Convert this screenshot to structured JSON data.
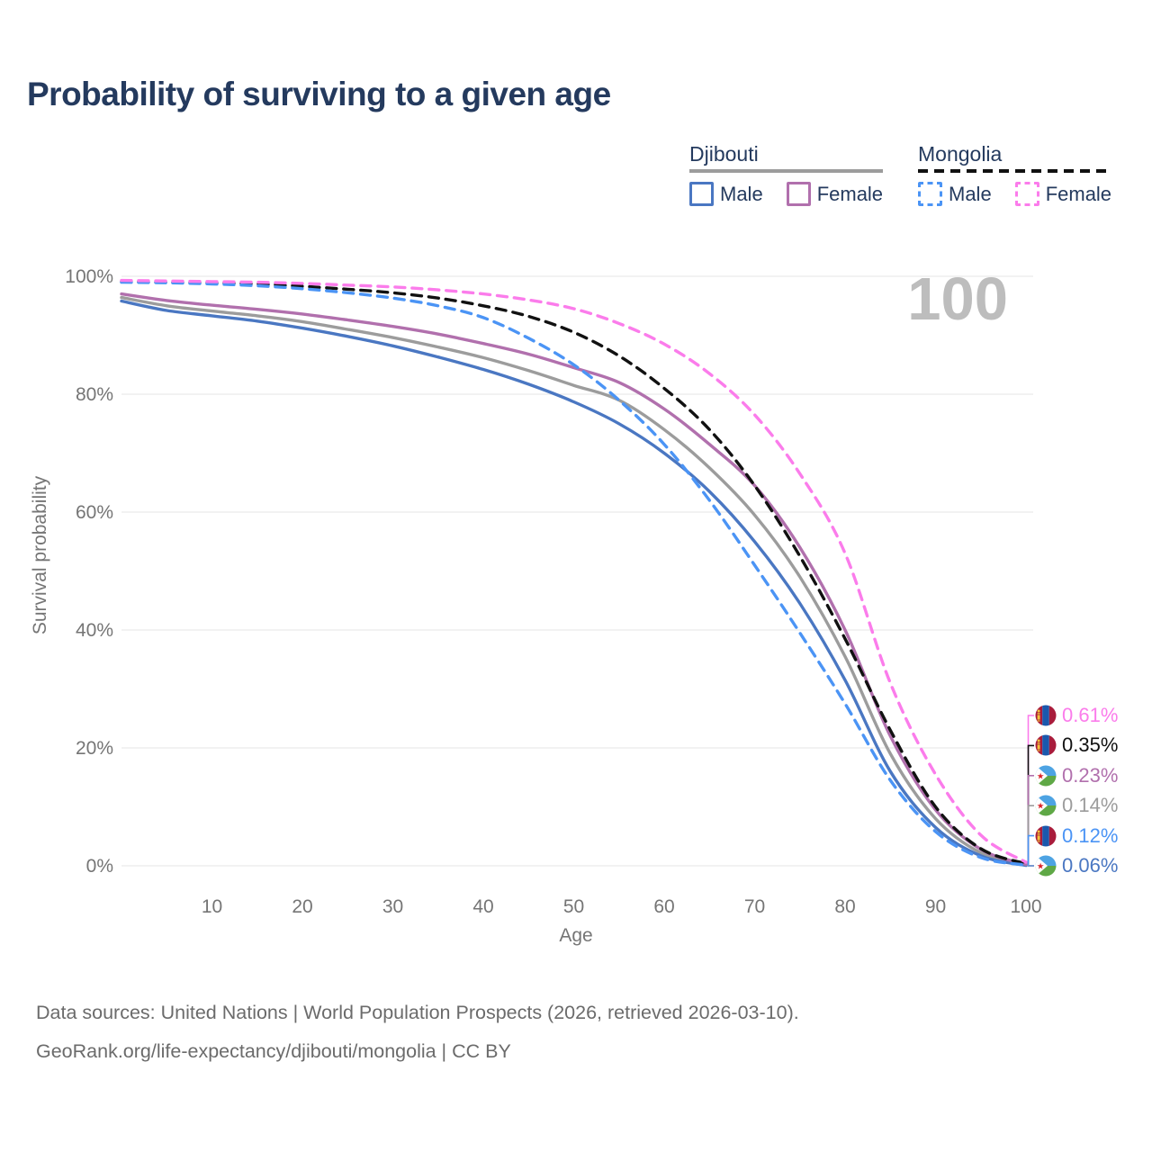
{
  "header": {
    "title": "Probability of surviving to a given age"
  },
  "legend": {
    "groups": [
      {
        "country": "Djibouti",
        "line_style": "solid",
        "underline_color": "#9c9c9c",
        "items": [
          {
            "label": "Male",
            "color": "#4a77c2",
            "dashed": false
          },
          {
            "label": "Female",
            "color": "#b170ad",
            "dashed": false
          }
        ]
      },
      {
        "country": "Mongolia",
        "line_style": "dashed",
        "underline_color": "#111111",
        "items": [
          {
            "label": "Male",
            "color": "#4b94f5",
            "dashed": true
          },
          {
            "label": "Female",
            "color": "#fb7ceb",
            "dashed": true
          }
        ]
      }
    ]
  },
  "watermark": "100",
  "chart_data": {
    "type": "line",
    "title": "Probability of surviving to a given age",
    "xlabel": "Age",
    "ylabel": "Survival probability",
    "xlim": [
      0,
      100
    ],
    "ylim": [
      0,
      100
    ],
    "grid": "horizontal",
    "x_ticks": [
      10,
      20,
      30,
      40,
      50,
      60,
      70,
      80,
      90,
      100
    ],
    "y_ticks": [
      0,
      20,
      40,
      60,
      80,
      100
    ],
    "y_tick_suffix": "%",
    "x": [
      0,
      5,
      10,
      15,
      20,
      25,
      30,
      35,
      40,
      45,
      50,
      55,
      60,
      65,
      70,
      75,
      80,
      85,
      90,
      95,
      100
    ],
    "series": [
      {
        "name": "Djibouti",
        "color": "#9c9c9c",
        "dashed": false,
        "end_label": "0.14%",
        "values": [
          96.4,
          95.0,
          94.1,
          93.3,
          92.3,
          91.0,
          89.6,
          88.0,
          86.2,
          84.0,
          81.5,
          79.0,
          74.0,
          67.5,
          59.5,
          49.0,
          35.5,
          19.0,
          8.0,
          2.2,
          0.14
        ]
      },
      {
        "name": "Djibouti Male",
        "color": "#4a77c2",
        "dashed": false,
        "end_label": "0.06%",
        "values": [
          95.8,
          94.2,
          93.3,
          92.4,
          91.2,
          89.8,
          88.2,
          86.3,
          84.2,
          81.7,
          78.7,
          75.0,
          70.0,
          63.5,
          55.0,
          44.5,
          31.5,
          16.0,
          6.5,
          1.7,
          0.06
        ]
      },
      {
        "name": "Djibouti Female",
        "color": "#b170ad",
        "dashed": false,
        "end_label": "0.23%",
        "values": [
          97.0,
          95.9,
          95.1,
          94.4,
          93.6,
          92.6,
          91.5,
          90.2,
          88.6,
          86.8,
          84.5,
          82.0,
          77.5,
          71.5,
          64.5,
          54.0,
          40.0,
          22.0,
          9.5,
          2.8,
          0.23
        ]
      },
      {
        "name": "Mongolia",
        "color": "#111111",
        "dashed": true,
        "end_label": "0.35%",
        "values": [
          99.1,
          99.0,
          98.9,
          98.7,
          98.3,
          97.8,
          97.2,
          96.3,
          95.0,
          93.2,
          90.5,
          86.5,
          81.0,
          74.0,
          64.5,
          52.5,
          38.5,
          23.0,
          10.0,
          2.9,
          0.35
        ]
      },
      {
        "name": "Mongolia Male",
        "color": "#4b94f5",
        "dashed": true,
        "end_label": "0.12%",
        "values": [
          99.0,
          98.9,
          98.7,
          98.4,
          97.9,
          97.2,
          96.3,
          95.0,
          93.0,
          89.5,
          85.0,
          79.0,
          71.5,
          62.0,
          51.0,
          39.5,
          27.5,
          14.5,
          5.8,
          1.4,
          0.12
        ]
      },
      {
        "name": "Mongolia Female",
        "color": "#fb7ceb",
        "dashed": true,
        "end_label": "0.61%",
        "values": [
          99.3,
          99.2,
          99.1,
          99.0,
          98.8,
          98.5,
          98.2,
          97.7,
          97.0,
          96.0,
          94.5,
          92.0,
          88.5,
          83.5,
          76.5,
          66.5,
          53.0,
          31.0,
          15.5,
          5.2,
          0.61
        ]
      }
    ],
    "end_labels": [
      {
        "value": "0.61%",
        "flag": "mongolia",
        "color": "#fb7ceb"
      },
      {
        "value": "0.35%",
        "flag": "mongolia",
        "color": "#111111"
      },
      {
        "value": "0.23%",
        "flag": "djibouti",
        "color": "#b170ad"
      },
      {
        "value": "0.14%",
        "flag": "djibouti",
        "color": "#9c9c9c"
      },
      {
        "value": "0.12%",
        "flag": "mongolia",
        "color": "#4b94f5"
      },
      {
        "value": "0.06%",
        "flag": "djibouti",
        "color": "#4a77c2"
      }
    ]
  },
  "footer": {
    "line1": "Data sources: United Nations | World Population Prospects (2026, retrieved 2026-03-10).",
    "line2": "GeoRank.org/life-expectancy/djibouti/mongolia | CC BY"
  }
}
